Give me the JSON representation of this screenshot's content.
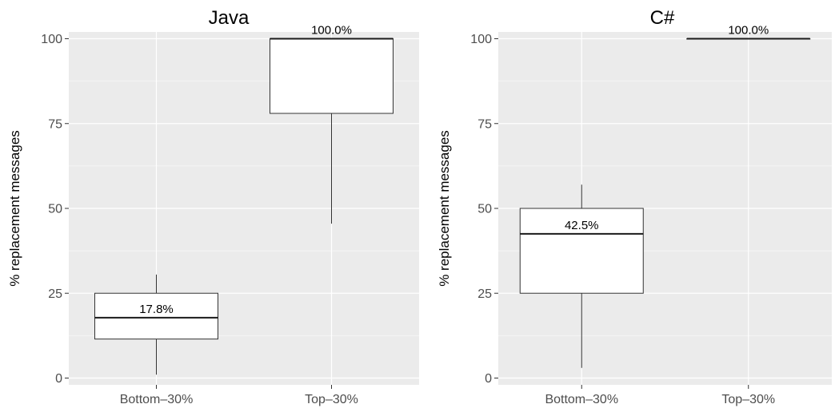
{
  "chart_data": [
    {
      "type": "box",
      "title": "Java",
      "xlabel": "",
      "ylabel": "% replacement messages",
      "ylim": [
        -2,
        102
      ],
      "yticks": [
        0,
        25,
        50,
        75,
        100
      ],
      "ytick_labels": [
        "0",
        "25",
        "50",
        "75",
        "100"
      ],
      "categories": [
        "Bottom–30%",
        "Top–30%"
      ],
      "boxes": [
        {
          "category": "Bottom–30%",
          "min": 1,
          "q1": 11.5,
          "median": 17.8,
          "q3": 25,
          "max": 30.5,
          "label": "17.8%"
        },
        {
          "category": "Top–30%",
          "min": 45.5,
          "q1": 78,
          "median": 100,
          "q3": 100,
          "max": 100,
          "label": "100.0%"
        }
      ],
      "grid": true
    },
    {
      "type": "box",
      "title": "C#",
      "xlabel": "",
      "ylabel": "% replacement messages",
      "ylim": [
        -2,
        102
      ],
      "yticks": [
        0,
        25,
        50,
        75,
        100
      ],
      "ytick_labels": [
        "0",
        "25",
        "50",
        "75",
        "100"
      ],
      "categories": [
        "Bottom–30%",
        "Top–30%"
      ],
      "boxes": [
        {
          "category": "Bottom–30%",
          "min": 3,
          "q1": 25,
          "median": 42.5,
          "q3": 50,
          "max": 57,
          "label": "42.5%"
        },
        {
          "category": "Top–30%",
          "min": 100,
          "q1": 100,
          "median": 100,
          "q3": 100,
          "max": 100,
          "label": "100.0%"
        }
      ],
      "grid": true
    }
  ],
  "colors": {
    "panel_background": "#ebebeb",
    "grid_major": "#ffffff",
    "box_fill": "#ffffff",
    "box_stroke": "#333333",
    "tick_text": "#4d4d4d"
  }
}
